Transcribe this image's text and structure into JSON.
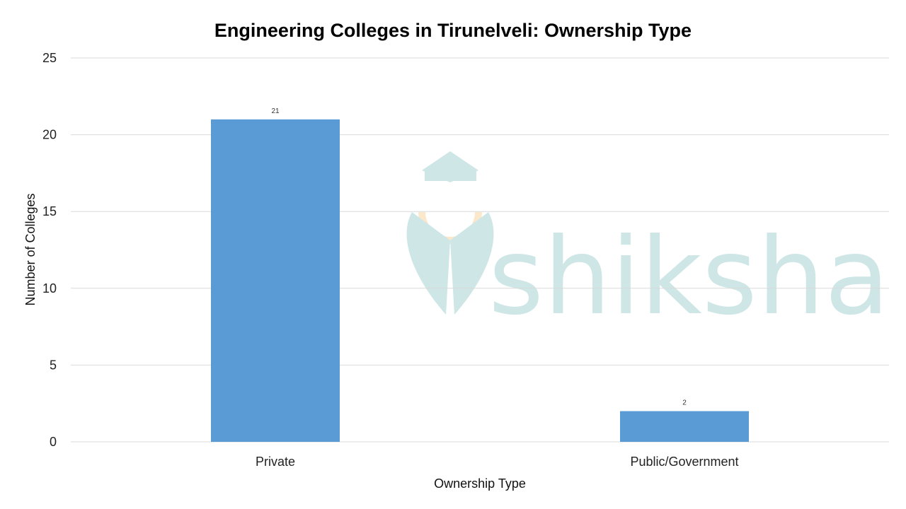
{
  "colors": {
    "bar": "#5b9bd5",
    "grid": "#d9d9d9",
    "watermark": "#cfe6e6",
    "watermark_accent": "#fbe7c9"
  },
  "watermark": {
    "text": "shiksha",
    "icon": "graduation-cap-logo-icon"
  },
  "chart_data": {
    "type": "bar",
    "title": "Engineering Colleges in Tirunelveli: Ownership Type",
    "xlabel": "Ownership Type",
    "ylabel": "Number of Colleges",
    "categories": [
      "Private",
      "Public/Government"
    ],
    "values": [
      21,
      2
    ],
    "data_labels": [
      "21",
      "2"
    ],
    "ylim": [
      0,
      25
    ],
    "yticks": [
      0,
      5,
      10,
      15,
      20,
      25
    ],
    "grid": true,
    "legend": "none"
  }
}
